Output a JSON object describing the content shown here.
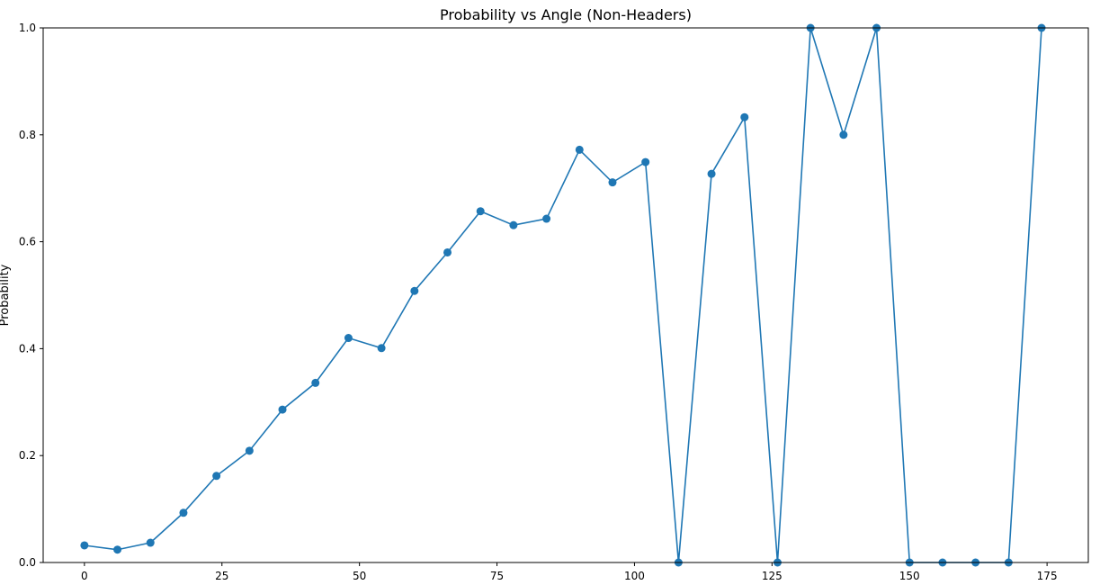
{
  "chart_data": {
    "type": "line",
    "title": "Probability vs Angle (Non-Headers)",
    "xlabel": "",
    "ylabel": "Probability",
    "xlim": [
      -7.5,
      182.5
    ],
    "ylim": [
      0,
      1.0
    ],
    "xticks": [
      0,
      25,
      50,
      75,
      100,
      125,
      150,
      175
    ],
    "xtick_labels": [
      "0",
      "25",
      "50",
      "75",
      "100",
      "125",
      "150",
      "175"
    ],
    "yticks": [
      0,
      0.2,
      0.4,
      0.6,
      0.8,
      1.0
    ],
    "ytick_labels": [
      "0.0",
      "0.2",
      "0.4",
      "0.6",
      "0.8",
      "1.0"
    ],
    "grid": false,
    "series": [
      {
        "color": "#1f77b4",
        "marker": "circle",
        "x": [
          0,
          6,
          12,
          18,
          24,
          30,
          36,
          42,
          48,
          54,
          60,
          66,
          72,
          78,
          84,
          90,
          96,
          102,
          108,
          114,
          120,
          126,
          132,
          138,
          144,
          150,
          156,
          162,
          168,
          174
        ],
        "y": [
          0.032,
          0.024,
          0.037,
          0.093,
          0.162,
          0.209,
          0.286,
          0.336,
          0.42,
          0.401,
          0.508,
          0.58,
          0.657,
          0.631,
          0.643,
          0.772,
          0.711,
          0.749,
          0.0,
          0.727,
          0.833,
          0.0,
          1.0,
          0.8,
          1.0,
          0.0,
          0.0,
          0.0,
          0.0,
          1.0
        ]
      }
    ]
  }
}
